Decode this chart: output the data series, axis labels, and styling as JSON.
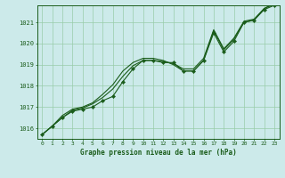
{
  "title": "Graphe pression niveau de la mer (hPa)",
  "bg_color": "#cceaea",
  "plot_bg_color": "#cceaea",
  "line_color": "#1a5c1a",
  "grid_color": "#99ccaa",
  "text_color": "#1a5c1a",
  "xlim": [
    -0.5,
    23.5
  ],
  "ylim": [
    1015.5,
    1021.8
  ],
  "yticks": [
    1016,
    1017,
    1018,
    1019,
    1020,
    1021
  ],
  "xticks": [
    0,
    1,
    2,
    3,
    4,
    5,
    6,
    7,
    8,
    9,
    10,
    11,
    12,
    13,
    14,
    15,
    16,
    17,
    18,
    19,
    20,
    21,
    22,
    23
  ],
  "series": [
    [
      1015.7,
      1016.1,
      1016.5,
      1016.8,
      1016.9,
      1017.0,
      1017.3,
      1017.5,
      1018.2,
      1018.8,
      1019.2,
      1019.2,
      1019.1,
      1019.1,
      1018.7,
      1018.7,
      1019.2,
      1020.5,
      1019.6,
      1020.1,
      1021.0,
      1021.1,
      1021.6,
      1021.8
    ],
    [
      1015.7,
      1016.1,
      1016.5,
      1016.85,
      1016.95,
      1017.15,
      1017.45,
      1017.85,
      1018.45,
      1018.95,
      1019.2,
      1019.2,
      1019.15,
      1019.05,
      1018.8,
      1018.8,
      1019.3,
      1020.65,
      1019.75,
      1020.25,
      1021.05,
      1021.15,
      1021.65,
      1021.85
    ],
    [
      1015.7,
      1016.1,
      1016.6,
      1016.9,
      1017.0,
      1017.2,
      1017.6,
      1018.05,
      1018.7,
      1019.1,
      1019.3,
      1019.3,
      1019.2,
      1019.0,
      1018.7,
      1018.7,
      1019.2,
      1020.6,
      1019.7,
      1020.2,
      1021.0,
      1021.1,
      1021.65,
      1021.9
    ]
  ],
  "marker_series_idx": 0
}
